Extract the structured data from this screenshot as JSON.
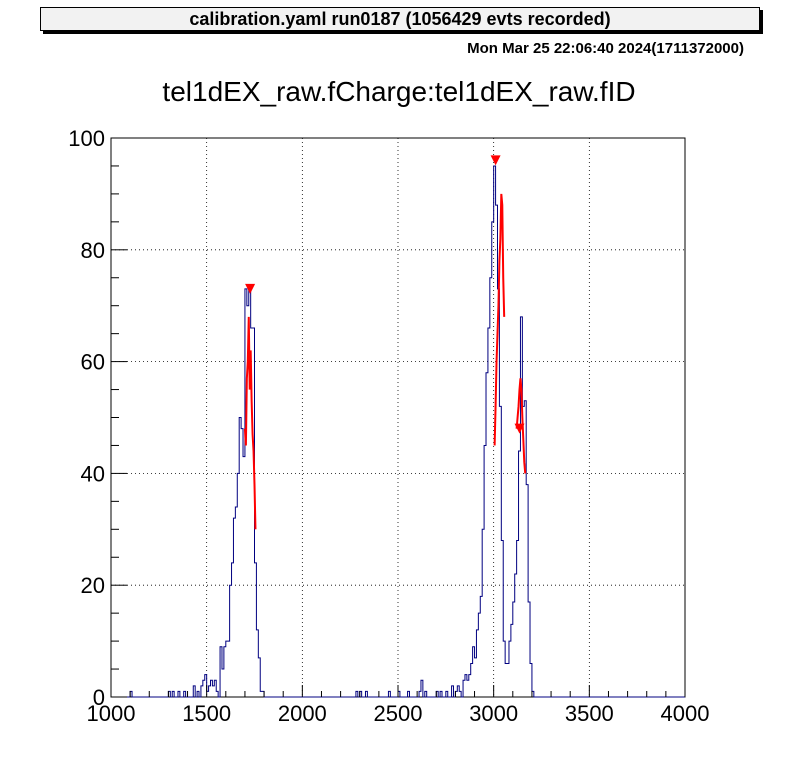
{
  "header": {
    "text": "calibration.yaml  run0187 (1056429 evts recorded)",
    "timestamp": "Mon Mar 25 22:06:40 2024(1711372000)"
  },
  "chart_data": {
    "type": "histogram",
    "title": "tel1dEX_raw.fCharge:tel1dEX_raw.fID",
    "xlim": [
      1000,
      4000
    ],
    "ylim": [
      0,
      100
    ],
    "x_ticks": [
      1000,
      1500,
      2000,
      2500,
      3000,
      3500,
      4000
    ],
    "y_ticks": [
      0,
      20,
      40,
      60,
      80,
      100
    ],
    "grid": true,
    "bin_width": 10,
    "histogram": {
      "color": "#000080",
      "bins": [
        [
          1100,
          1
        ],
        [
          1300,
          1
        ],
        [
          1320,
          1
        ],
        [
          1350,
          1
        ],
        [
          1380,
          1
        ],
        [
          1430,
          2
        ],
        [
          1450,
          1
        ],
        [
          1470,
          2
        ],
        [
          1480,
          3
        ],
        [
          1490,
          4
        ],
        [
          1500,
          1
        ],
        [
          1510,
          2
        ],
        [
          1520,
          3
        ],
        [
          1530,
          2
        ],
        [
          1540,
          3
        ],
        [
          1550,
          1
        ],
        [
          1560,
          0
        ],
        [
          1570,
          9
        ],
        [
          1580,
          5
        ],
        [
          1590,
          9
        ],
        [
          1600,
          10
        ],
        [
          1610,
          10
        ],
        [
          1620,
          20
        ],
        [
          1630,
          24
        ],
        [
          1640,
          32
        ],
        [
          1650,
          34
        ],
        [
          1660,
          40
        ],
        [
          1670,
          50
        ],
        [
          1680,
          48
        ],
        [
          1690,
          43
        ],
        [
          1700,
          73
        ],
        [
          1710,
          70
        ],
        [
          1720,
          73
        ],
        [
          1730,
          66
        ],
        [
          1740,
          66
        ],
        [
          1750,
          24
        ],
        [
          1760,
          12
        ],
        [
          1770,
          7
        ],
        [
          1780,
          1
        ],
        [
          1790,
          1
        ],
        [
          2280,
          1
        ],
        [
          2300,
          1
        ],
        [
          2330,
          1
        ],
        [
          2450,
          1
        ],
        [
          2500,
          1
        ],
        [
          2550,
          1
        ],
        [
          2610,
          1
        ],
        [
          2620,
          3
        ],
        [
          2640,
          1
        ],
        [
          2700,
          1
        ],
        [
          2720,
          1
        ],
        [
          2750,
          1
        ],
        [
          2780,
          2
        ],
        [
          2800,
          1
        ],
        [
          2810,
          2
        ],
        [
          2820,
          1
        ],
        [
          2840,
          3
        ],
        [
          2850,
          4
        ],
        [
          2860,
          3
        ],
        [
          2870,
          4
        ],
        [
          2880,
          6
        ],
        [
          2890,
          9
        ],
        [
          2900,
          7
        ],
        [
          2910,
          12
        ],
        [
          2920,
          15
        ],
        [
          2930,
          18
        ],
        [
          2940,
          30
        ],
        [
          2950,
          45
        ],
        [
          2960,
          58
        ],
        [
          2970,
          66
        ],
        [
          2980,
          75
        ],
        [
          2990,
          85
        ],
        [
          3000,
          95
        ],
        [
          3010,
          88
        ],
        [
          3020,
          73
        ],
        [
          3030,
          52
        ],
        [
          3040,
          28
        ],
        [
          3050,
          10
        ],
        [
          3060,
          6
        ],
        [
          3070,
          6
        ],
        [
          3080,
          10
        ],
        [
          3090,
          13
        ],
        [
          3100,
          17
        ],
        [
          3110,
          22
        ],
        [
          3120,
          28
        ],
        [
          3130,
          44
        ],
        [
          3140,
          68
        ],
        [
          3150,
          52
        ],
        [
          3160,
          53
        ],
        [
          3170,
          38
        ],
        [
          3180,
          17
        ],
        [
          3190,
          6
        ],
        [
          3200,
          1
        ]
      ]
    },
    "fit_curves": [
      {
        "color": "#ff0000",
        "points": [
          [
            1700,
            48
          ],
          [
            1705,
            45
          ],
          [
            1710,
            57
          ],
          [
            1715,
            60
          ],
          [
            1720,
            68
          ],
          [
            1725,
            55
          ],
          [
            1730,
            62
          ],
          [
            1735,
            53
          ],
          [
            1740,
            47
          ],
          [
            1745,
            44
          ],
          [
            1750,
            38
          ],
          [
            1755,
            30
          ]
        ]
      },
      {
        "color": "#ff0000",
        "points": [
          [
            3005,
            45
          ],
          [
            3010,
            52
          ],
          [
            3015,
            60
          ],
          [
            3020,
            65
          ],
          [
            3025,
            70
          ],
          [
            3030,
            78
          ],
          [
            3035,
            82
          ],
          [
            3040,
            90
          ],
          [
            3045,
            88
          ],
          [
            3050,
            75
          ],
          [
            3055,
            68
          ]
        ]
      },
      {
        "color": "#ff0000",
        "points": [
          [
            3120,
            48
          ],
          [
            3125,
            50
          ],
          [
            3130,
            52
          ],
          [
            3135,
            55
          ],
          [
            3140,
            57
          ],
          [
            3145,
            55
          ],
          [
            3150,
            50
          ],
          [
            3155,
            46
          ],
          [
            3160,
            42
          ],
          [
            3165,
            40
          ]
        ]
      }
    ],
    "markers": {
      "symbol": "down-triangle",
      "color": "#ff0000",
      "points": [
        [
          1727,
          73
        ],
        [
          3010,
          96
        ],
        [
          3135,
          48
        ]
      ]
    }
  }
}
